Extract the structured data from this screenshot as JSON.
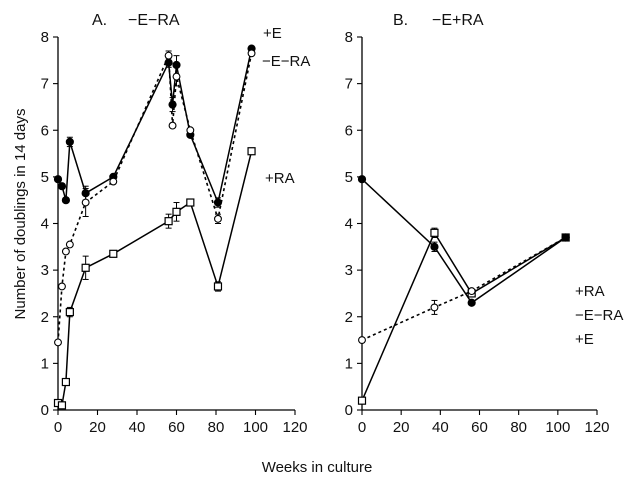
{
  "ylabel": "Number of doublings in 14 days",
  "xlabel": "Weeks in culture",
  "chart_data": [
    {
      "type": "line",
      "panel_label": "A.",
      "title": "−E−RA",
      "xlim": [
        0,
        120
      ],
      "ylim": [
        0,
        8
      ],
      "xticks": [
        "0",
        "20",
        "40",
        "60",
        "80",
        "100",
        "120"
      ],
      "yticks": [
        "0",
        "1",
        "2",
        "3",
        "4",
        "5",
        "6",
        "7",
        "8"
      ],
      "series": [
        {
          "name": "+E",
          "marker": "filled-circle",
          "line": "solid",
          "x": [
            0,
            2,
            4,
            6,
            14,
            28,
            56,
            58,
            60,
            67,
            81,
            98
          ],
          "y": [
            4.95,
            4.8,
            4.5,
            5.75,
            4.65,
            5.0,
            7.45,
            6.55,
            7.4,
            5.9,
            4.45,
            7.75
          ],
          "err": [
            0,
            0,
            0,
            0.1,
            0.15,
            0,
            0.1,
            0.15,
            0.2,
            0,
            0.1,
            0.05
          ]
        },
        {
          "name": "−E−RA",
          "marker": "open-circle",
          "line": "dashed",
          "x": [
            0,
            2,
            4,
            6,
            14,
            28,
            56,
            58,
            60,
            67,
            81,
            98
          ],
          "y": [
            1.45,
            2.65,
            3.4,
            3.55,
            4.45,
            4.9,
            7.6,
            6.1,
            7.15,
            6.0,
            4.1,
            7.65
          ],
          "err": [
            0,
            0,
            0,
            0,
            0.3,
            0,
            0.1,
            0,
            0.2,
            0,
            0.1,
            0
          ]
        },
        {
          "name": "+RA",
          "marker": "open-square",
          "line": "solid",
          "x": [
            0,
            2,
            4,
            6,
            14,
            28,
            56,
            60,
            67,
            81,
            98
          ],
          "y": [
            0.15,
            0.1,
            0.6,
            2.1,
            3.05,
            3.35,
            4.05,
            4.25,
            4.45,
            2.65,
            5.55
          ],
          "err": [
            0,
            0,
            0,
            0.1,
            0.25,
            0,
            0.15,
            0.2,
            0,
            0.1,
            0
          ]
        }
      ]
    },
    {
      "type": "line",
      "panel_label": "B.",
      "title": "−E+RA",
      "xlim": [
        0,
        120
      ],
      "ylim": [
        0,
        8
      ],
      "xticks": [
        "0",
        "20",
        "40",
        "60",
        "80",
        "100",
        "120"
      ],
      "yticks": [
        "0",
        "1",
        "2",
        "3",
        "4",
        "5",
        "6",
        "7",
        "8"
      ],
      "series": [
        {
          "name": "+RA",
          "marker": "open-square",
          "line": "solid",
          "x": [
            0,
            37,
            56,
            104
          ],
          "y": [
            0.2,
            3.8,
            2.5,
            3.7
          ],
          "err": [
            0,
            0.1,
            0,
            0
          ]
        },
        {
          "name": "−E−RA",
          "marker": "open-circle",
          "line": "dashed",
          "x": [
            0,
            37,
            56,
            104
          ],
          "y": [
            1.5,
            2.2,
            2.55,
            3.7
          ],
          "err": [
            0,
            0.15,
            0,
            0
          ]
        },
        {
          "name": "+E",
          "marker": "filled-circle",
          "line": "solid",
          "x": [
            0,
            37,
            56,
            104
          ],
          "y": [
            4.95,
            3.5,
            2.3,
            3.7
          ],
          "err": [
            0,
            0.1,
            0,
            0
          ]
        }
      ]
    }
  ]
}
